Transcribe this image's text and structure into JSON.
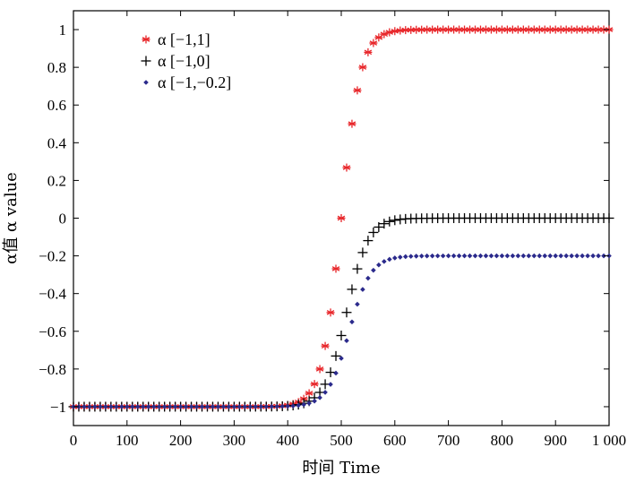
{
  "chart_data": {
    "type": "scatter",
    "xlabel": "时间 Time",
    "ylabel": "α值 α value",
    "xlim": [
      0,
      1000
    ],
    "ylim": [
      -1.1,
      1.1
    ],
    "x_ticks": [
      0,
      100,
      200,
      300,
      400,
      500,
      600,
      700,
      800,
      900,
      1000
    ],
    "x_tick_labels": [
      "0",
      "100",
      "200",
      "300",
      "400",
      "500",
      "600",
      "700",
      "800",
      "900",
      "1 000"
    ],
    "y_ticks": [
      -1,
      -0.8,
      -0.6,
      -0.4,
      -0.2,
      0,
      0.2,
      0.4,
      0.6,
      0.8,
      1
    ],
    "y_tick_labels": [
      "−1",
      "−0.8",
      "−0.6",
      "−0.4",
      "−0.2",
      "0",
      "0.2",
      "0.4",
      "0.6",
      "0.8",
      "1"
    ],
    "grid": false,
    "legend_position": "top-left",
    "series": [
      {
        "name": "α [−1,1]",
        "marker": "asterisk",
        "color": "#e8262a",
        "sigmoid": {
          "low": -1,
          "high": 1,
          "midpoint": 500,
          "steepness": 0.055
        },
        "x_start": 0,
        "x_end": 1000,
        "x_step": 10
      },
      {
        "name": "α [−1,0]",
        "marker": "plus",
        "color": "#000000",
        "sigmoid": {
          "low": -1,
          "high": 0,
          "midpoint": 510,
          "steepness": 0.05
        },
        "x_start": 0,
        "x_end": 1000,
        "x_step": 10
      },
      {
        "name": "α [−1,−0.2]",
        "marker": "diamond",
        "color": "#2b2a8c",
        "sigmoid": {
          "low": -1,
          "high": -0.2,
          "midpoint": 515,
          "steepness": 0.05
        },
        "x_start": 0,
        "x_end": 1000,
        "x_step": 10
      }
    ]
  }
}
